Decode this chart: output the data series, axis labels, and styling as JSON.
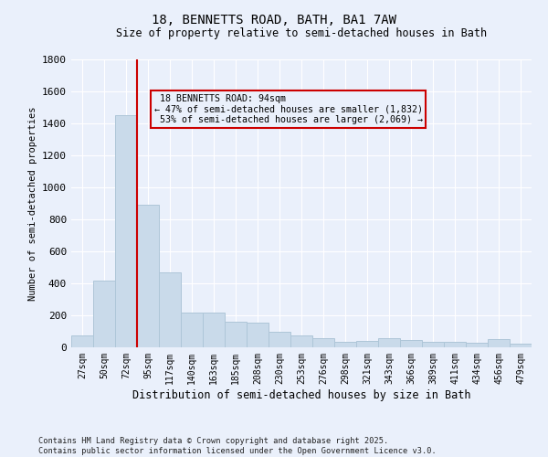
{
  "title": "18, BENNETTS ROAD, BATH, BA1 7AW",
  "subtitle": "Size of property relative to semi-detached houses in Bath",
  "xlabel": "Distribution of semi-detached houses by size in Bath",
  "ylabel": "Number of semi-detached properties",
  "property_label": "18 BENNETTS ROAD: 94sqm",
  "pct_smaller": 47,
  "pct_larger": 53,
  "count_smaller": 1832,
  "count_larger": 2069,
  "bar_color": "#c9daea",
  "bar_edge_color": "#aec6d8",
  "vline_color": "#cc0000",
  "annotation_box_edgecolor": "#cc0000",
  "background_color": "#eaf0fb",
  "grid_color": "#ffffff",
  "categories": [
    "27sqm",
    "50sqm",
    "72sqm",
    "95sqm",
    "117sqm",
    "140sqm",
    "163sqm",
    "185sqm",
    "208sqm",
    "230sqm",
    "253sqm",
    "276sqm",
    "298sqm",
    "321sqm",
    "343sqm",
    "366sqm",
    "389sqm",
    "411sqm",
    "434sqm",
    "456sqm",
    "479sqm"
  ],
  "values": [
    75,
    415,
    1450,
    890,
    470,
    215,
    215,
    160,
    155,
    95,
    75,
    55,
    35,
    40,
    55,
    45,
    35,
    35,
    30,
    50,
    25
  ],
  "ylim": [
    0,
    1800
  ],
  "yticks": [
    0,
    200,
    400,
    600,
    800,
    1000,
    1200,
    1400,
    1600,
    1800
  ],
  "vline_x_index": 2.5,
  "footer": "Contains HM Land Registry data © Crown copyright and database right 2025.\nContains public sector information licensed under the Open Government Licence v3.0.",
  "figsize": [
    6.0,
    5.0
  ],
  "dpi": 100
}
